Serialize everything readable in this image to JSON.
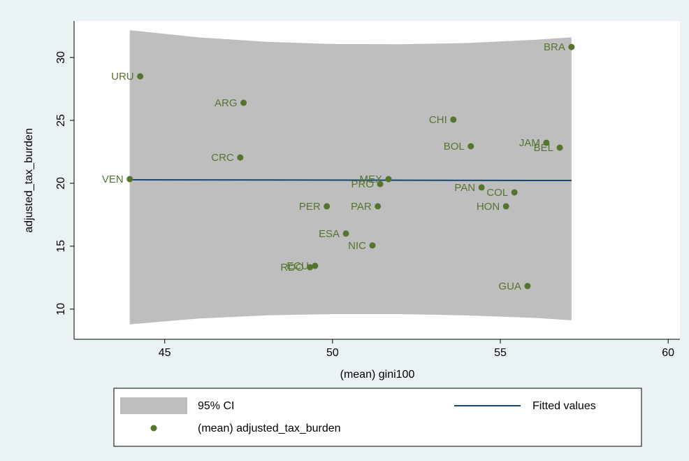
{
  "chart_data": {
    "type": "scatter",
    "x_label": "(mean) gini100",
    "y_label": "adjusted_tax_burden",
    "xlim": [
      42.3,
      60.35
    ],
    "ylim": [
      7.6,
      32.9
    ],
    "xticks": [
      45,
      50,
      55,
      60
    ],
    "yticks": [
      10,
      15,
      20,
      25,
      30
    ],
    "ci": {
      "name": "95% CI",
      "color": "#bebebe",
      "x": [
        43.96,
        46,
        48,
        50,
        52,
        54,
        56,
        57.12
      ],
      "upper": [
        32.17,
        31.6,
        31.25,
        31.07,
        31.05,
        31.15,
        31.4,
        31.6
      ],
      "lower": [
        8.78,
        9.25,
        9.5,
        9.6,
        9.6,
        9.5,
        9.3,
        9.11
      ]
    },
    "fit": {
      "name": "Fitted values",
      "color": "#1a476f",
      "x": [
        43.96,
        57.12
      ],
      "values": [
        20.28,
        20.22
      ]
    },
    "points": {
      "name": "(mean) adjusted_tax_burden",
      "color": "#55752f",
      "labels": [
        "URU",
        "ARG",
        "CRC",
        "VEN",
        "BRA",
        "CHI",
        "BOL",
        "JAM",
        "BEL",
        "MEX",
        "PRO",
        "PAN",
        "COL",
        "PER",
        "PAR",
        "HON",
        "ESA",
        "NIC",
        "ECU",
        "RDO",
        "GUA"
      ],
      "x": [
        44.27,
        47.35,
        47.25,
        43.96,
        57.12,
        53.6,
        54.12,
        56.37,
        56.77,
        51.67,
        51.42,
        54.44,
        55.42,
        49.83,
        51.35,
        55.17,
        50.4,
        51.19,
        49.48,
        49.33,
        55.81
      ],
      "values": [
        28.5,
        26.4,
        22.05,
        20.33,
        30.83,
        25.06,
        22.94,
        23.22,
        22.83,
        20.33,
        19.94,
        19.67,
        19.28,
        18.17,
        18.17,
        18.17,
        16.0,
        15.06,
        13.44,
        13.33,
        11.83
      ]
    }
  }
}
